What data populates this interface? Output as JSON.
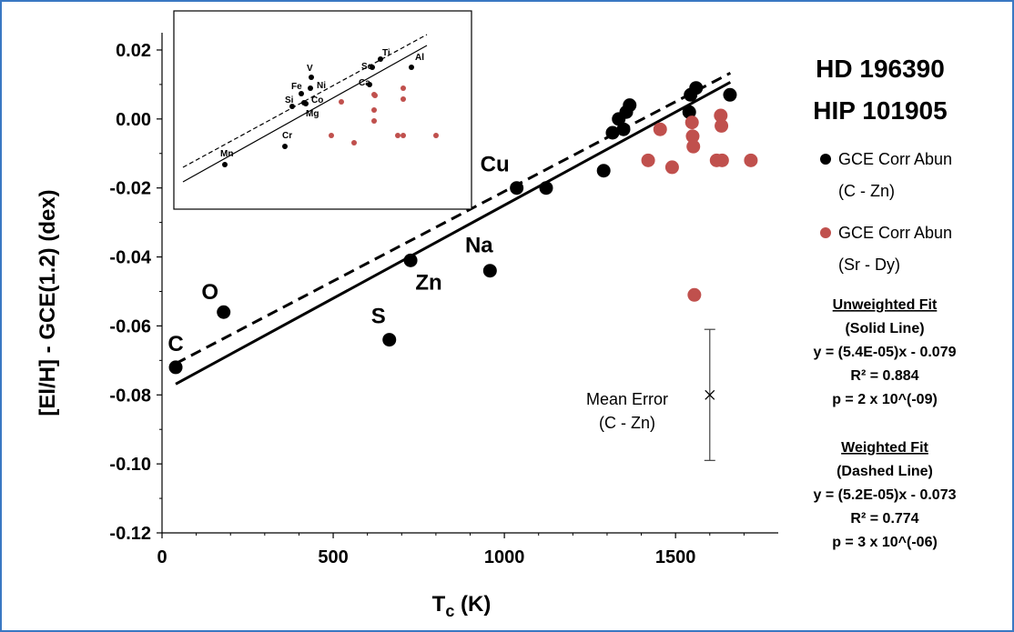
{
  "chart_data": {
    "type": "scatter",
    "title": [
      "HD 196390",
      "HIP 101905"
    ],
    "xlabel": "T",
    "xlabel_sub": "c",
    "xlabel_unit": " (K)",
    "ylabel": "[El/H] - GCE(1.2)  (dex)",
    "xlim": [
      0,
      1800
    ],
    "ylim": [
      -0.12,
      0.025
    ],
    "x_ticks": [
      0,
      500,
      1000,
      1500
    ],
    "y_ticks": [
      -0.12,
      -0.1,
      -0.08,
      -0.06,
      -0.04,
      -0.02,
      0.0,
      0.02
    ],
    "y_tick_labels": [
      "-0.12",
      "-0.10",
      "-0.08",
      "-0.06",
      "-0.04",
      "-0.02",
      "0.00",
      "0.02"
    ],
    "series": [
      {
        "name": "GCE Corr Abun",
        "range": "(C - Zn)",
        "color": "#000000",
        "points": [
          {
            "x": 40,
            "y": -0.072,
            "label": "C"
          },
          {
            "x": 180,
            "y": -0.056,
            "label": "O"
          },
          {
            "x": 664,
            "y": -0.064,
            "label": "S"
          },
          {
            "x": 726,
            "y": -0.041,
            "label": "Zn"
          },
          {
            "x": 958,
            "y": -0.044,
            "label": "Na"
          },
          {
            "x": 1036,
            "y": -0.02,
            "label": "Cu"
          },
          {
            "x": 1122,
            "y": -0.02,
            "label": ""
          },
          {
            "x": 1290,
            "y": -0.015,
            "label": ""
          },
          {
            "x": 1316,
            "y": -0.004,
            "label": ""
          },
          {
            "x": 1334,
            "y": 0.0,
            "label": ""
          },
          {
            "x": 1348,
            "y": -0.003,
            "label": ""
          },
          {
            "x": 1356,
            "y": 0.002,
            "label": ""
          },
          {
            "x": 1366,
            "y": 0.004,
            "label": ""
          },
          {
            "x": 1540,
            "y": 0.002,
            "label": ""
          },
          {
            "x": 1544,
            "y": 0.007,
            "label": ""
          },
          {
            "x": 1560,
            "y": 0.009,
            "label": ""
          },
          {
            "x": 1659,
            "y": 0.007,
            "label": ""
          }
        ]
      },
      {
        "name": "GCE Corr Abun",
        "range": "(Sr - Dy)",
        "color": "#c0504d",
        "points": [
          {
            "x": 1420,
            "y": -0.012
          },
          {
            "x": 1455,
            "y": -0.003
          },
          {
            "x": 1490,
            "y": -0.014
          },
          {
            "x": 1548,
            "y": -0.001
          },
          {
            "x": 1550,
            "y": -0.005
          },
          {
            "x": 1552,
            "y": -0.008
          },
          {
            "x": 1555,
            "y": -0.051
          },
          {
            "x": 1620,
            "y": -0.012
          },
          {
            "x": 1632,
            "y": 0.001
          },
          {
            "x": 1634,
            "y": -0.002
          },
          {
            "x": 1636,
            "y": -0.012
          },
          {
            "x": 1720,
            "y": -0.012
          }
        ]
      }
    ],
    "fits": [
      {
        "name": "Unweighted Fit",
        "style": "(Solid Line)",
        "slope": 5.4e-05,
        "intercept": -0.079,
        "equation": "y = (5.4E-05)x - 0.079",
        "r2": "R² = 0.884",
        "p": "p = 2 x 10^(-09)"
      },
      {
        "name": "Weighted Fit",
        "style": "(Dashed Line)",
        "slope": 5.2e-05,
        "intercept": -0.073,
        "equation": "y = (5.2E-05)x - 0.073",
        "r2": "R² = 0.774",
        "p": "p = 3 x 10^(-06)"
      }
    ],
    "mean_error": {
      "label": "Mean Error",
      "range": "(C - Zn)",
      "x": 1600,
      "y": -0.08,
      "low": -0.099,
      "high": -0.061
    },
    "inset": {
      "elements": [
        {
          "label": "Mn",
          "color": "#000000"
        },
        {
          "label": "Cr",
          "color": "#000000"
        },
        {
          "label": "Si",
          "color": "#000000"
        },
        {
          "label": "Fe",
          "color": "#000000"
        },
        {
          "label": "V",
          "color": "#000000"
        },
        {
          "label": "Ni",
          "color": "#000000"
        },
        {
          "label": "Co",
          "color": "#000000"
        },
        {
          "label": "Mg",
          "color": "#000000"
        },
        {
          "label": "Sc",
          "color": "#000000"
        },
        {
          "label": "Ca",
          "color": "#000000"
        },
        {
          "label": "Ti",
          "color": "#000000"
        },
        {
          "label": "Al",
          "color": "#000000"
        }
      ]
    }
  }
}
